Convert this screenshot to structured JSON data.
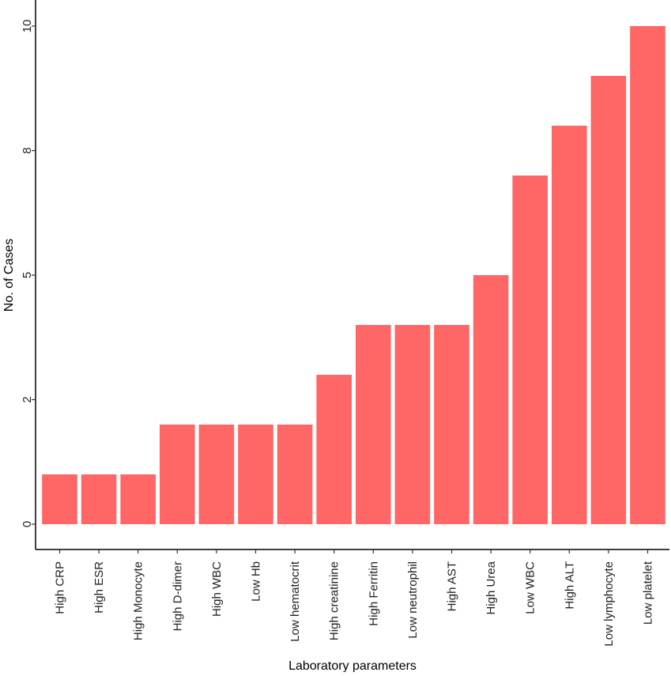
{
  "chart_data": {
    "type": "bar",
    "title": "",
    "xlabel": "Laboratory parameters",
    "ylabel": "No. of Cases",
    "categories": [
      "High CRP",
      "High ESR",
      "High Monocyte",
      "High D-dimer",
      "High WBC",
      "Low Hb",
      "Low hematocrit",
      "High creatinine",
      "High Ferritin",
      "Low neutrophil",
      "High AST",
      "High Urea",
      "Low WBC",
      "High ALT",
      "Low lymphocyte",
      "Low platelet"
    ],
    "values": [
      1,
      1,
      1,
      2,
      2,
      2,
      2,
      3,
      4,
      4,
      4,
      5,
      7,
      8,
      9,
      10
    ],
    "ylim": [
      -0.5,
      10.5
    ],
    "yticks": [
      0,
      2,
      5,
      8,
      10
    ],
    "ytick_labels": [
      "0",
      "2",
      "5",
      "8",
      "10"
    ],
    "bar_color": "#FF6666",
    "grid": false,
    "legend": "none"
  }
}
